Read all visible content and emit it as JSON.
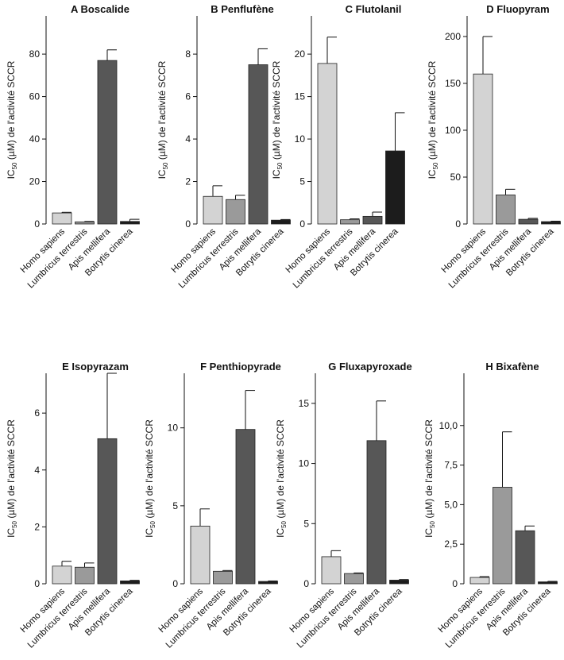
{
  "ylabel": "IC50 (µM) de l'activité SCCR",
  "ylabel_parts": {
    "pre": "IC",
    "sub": "50",
    "post": " (µM) de l'activité SCCR"
  },
  "categories": [
    "Homo sapiens",
    "Lumbricus terrestris",
    "Apis mellifera",
    "Botrytis cinerea"
  ],
  "colors": [
    "#d3d3d3",
    "#9a9a9a",
    "#575757",
    "#1c1c1c"
  ],
  "chart_data": [
    {
      "type": "bar",
      "title": "A Boscalide",
      "categories": [
        "Homo sapiens",
        "Lumbricus terrestris",
        "Apis mellifera",
        "Botrytis cinerea"
      ],
      "values": [
        5.2,
        1.0,
        77,
        1.2
      ],
      "errors": [
        0.3,
        0.2,
        5,
        1.0
      ],
      "ylim": [
        0,
        98
      ],
      "yticks": [
        "0",
        "20",
        "40",
        "60",
        "80"
      ],
      "ytick_values": [
        0,
        20,
        40,
        60,
        80
      ]
    },
    {
      "type": "bar",
      "title": "B Penflufène",
      "categories": [
        "Homo sapiens",
        "Lumbricus terrestris",
        "Apis mellifera",
        "Botrytis cinerea"
      ],
      "values": [
        1.3,
        1.15,
        7.5,
        0.18
      ],
      "errors": [
        0.5,
        0.2,
        0.75,
        0.03
      ],
      "ylim": [
        0,
        9.8
      ],
      "yticks": [
        "0",
        "2",
        "4",
        "6",
        "8"
      ],
      "ytick_values": [
        0,
        2,
        4,
        6,
        8
      ]
    },
    {
      "type": "bar",
      "title": "C Flutolanil",
      "categories": [
        "Homo sapiens",
        "Lumbricus terrestris",
        "Apis mellifera",
        "Botrytis cinerea"
      ],
      "values": [
        18.9,
        0.5,
        0.9,
        8.6
      ],
      "errors": [
        3.1,
        0.1,
        0.5,
        4.5
      ],
      "ylim": [
        0,
        24.5
      ],
      "yticks": [
        "0",
        "5",
        "10",
        "15",
        "20"
      ],
      "ytick_values": [
        0,
        5,
        10,
        15,
        20
      ]
    },
    {
      "type": "bar",
      "title": "D Fluopyram",
      "categories": [
        "Homo sapiens",
        "Lumbricus terrestris",
        "Apis mellifera",
        "Botrytis cinerea"
      ],
      "values": [
        160,
        31,
        5,
        2.5
      ],
      "errors": [
        40,
        6,
        1,
        0.5
      ],
      "ylim": [
        0,
        222
      ],
      "yticks": [
        "0",
        "50",
        "100",
        "150",
        "200"
      ],
      "ytick_values": [
        0,
        50,
        100,
        150,
        200
      ]
    },
    {
      "type": "bar",
      "title": "E Isopyrazam",
      "categories": [
        "Homo sapiens",
        "Lumbricus terrestris",
        "Apis mellifera",
        "Botrytis cinerea"
      ],
      "values": [
        0.62,
        0.58,
        5.1,
        0.1
      ],
      "errors": [
        0.17,
        0.15,
        2.3,
        0.02
      ],
      "ylim": [
        0,
        7.4
      ],
      "yticks": [
        "0",
        "2",
        "4",
        "6"
      ],
      "ytick_values": [
        0,
        2,
        4,
        6
      ]
    },
    {
      "type": "bar",
      "title": "F Penthiopyrade",
      "categories": [
        "Homo sapiens",
        "Lumbricus terrestris",
        "Apis mellifera",
        "Botrytis cinerea"
      ],
      "values": [
        3.7,
        0.8,
        9.9,
        0.15
      ],
      "errors": [
        1.1,
        0.05,
        2.5,
        0.03
      ],
      "ylim": [
        0,
        13.5
      ],
      "yticks": [
        "0",
        "5",
        "10"
      ],
      "ytick_values": [
        0,
        5,
        10
      ]
    },
    {
      "type": "bar",
      "title": "G Fluxapyroxade",
      "categories": [
        "Homo sapiens",
        "Lumbricus terrestris",
        "Apis mellifera",
        "Botrytis cinerea"
      ],
      "values": [
        2.25,
        0.85,
        11.9,
        0.3
      ],
      "errors": [
        0.5,
        0.05,
        3.3,
        0.05
      ],
      "ylim": [
        0,
        17.5
      ],
      "yticks": [
        "0",
        "5",
        "10",
        "15"
      ],
      "ytick_values": [
        0,
        5,
        10,
        15
      ]
    },
    {
      "type": "bar",
      "title": "H Bixafène",
      "categories": [
        "Homo sapiens",
        "Lumbricus terrestris",
        "Apis mellifera",
        "Botrytis cinerea"
      ],
      "values": [
        0.4,
        6.1,
        3.35,
        0.12
      ],
      "errors": [
        0.05,
        3.5,
        0.3,
        0.03
      ],
      "ylim": [
        0,
        13.3
      ],
      "yticks": [
        "0",
        "2,5",
        "5,0",
        "7,5",
        "10,0"
      ],
      "ytick_values": [
        0,
        2.5,
        5,
        7.5,
        10
      ]
    }
  ]
}
